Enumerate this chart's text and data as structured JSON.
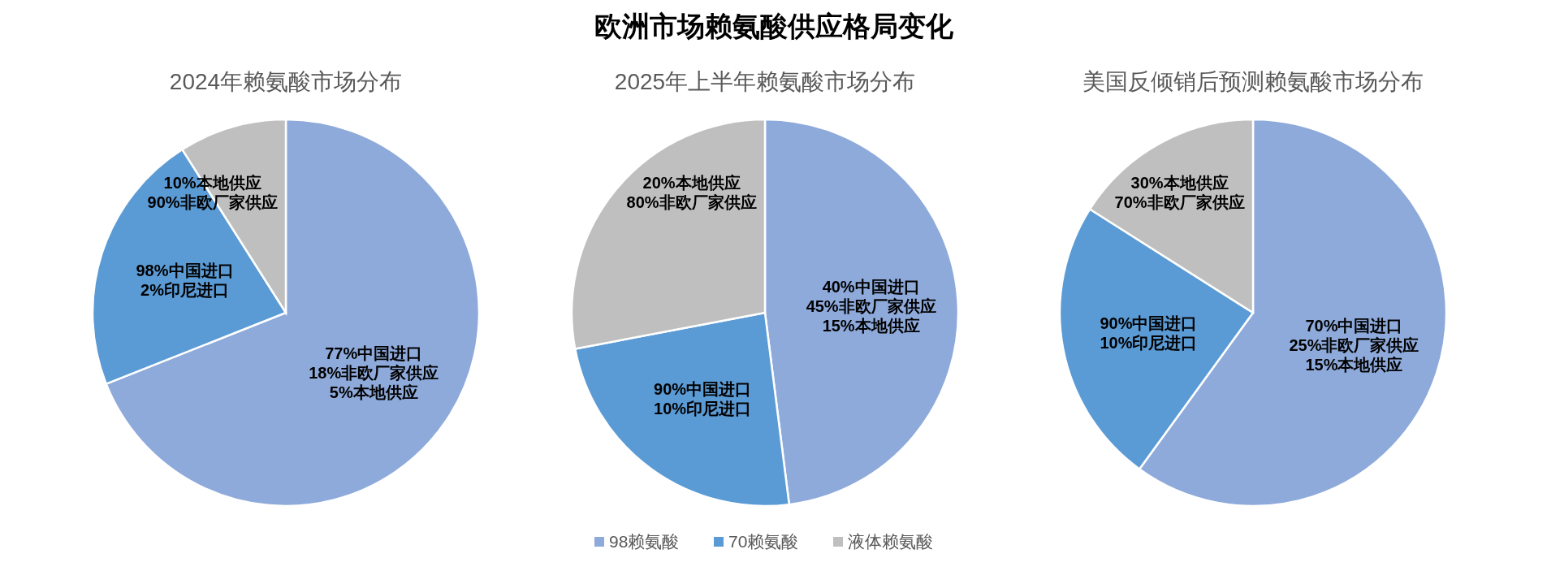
{
  "chart_data": [
    {
      "type": "other",
      "title": "欧洲市场赖氨酸供应格局变化"
    },
    {
      "type": "pie",
      "title": "2024年赖氨酸市场分布",
      "categories": [
        null,
        null,
        null
      ],
      "values": [
        69,
        22,
        9
      ],
      "colors": [
        "#8eaadb",
        "#5b9bd5",
        "#bfbfbf"
      ],
      "legend": false,
      "annotations": [
        "77%中国进口\n18%非欧厂家供应\n5%本地供应",
        "98%中国进口\n2%印尼进口",
        "10%本地供应\n90%非欧厂家供应"
      ]
    },
    {
      "type": "pie",
      "title": "2025年上半年赖氨酸市场分布",
      "categories": [
        "98赖氨酸",
        "70赖氨酸",
        "液体赖氨酸"
      ],
      "values": [
        48,
        24,
        28
      ],
      "colors": [
        "#8eaadb",
        "#5b9bd5",
        "#bfbfbf"
      ],
      "legend": "bottom",
      "annotations": [
        "40%中国进口\n45%非欧厂家供应\n15%本地供应",
        "90%中国进口\n10%印尼进口",
        "20%本地供应\n80%非欧厂家供应"
      ]
    },
    {
      "type": "pie",
      "title": "美国反倾销后预测赖氨酸市场分布",
      "categories": [
        null,
        null,
        null
      ],
      "values": [
        60,
        24,
        16
      ],
      "colors": [
        "#8eaadb",
        "#5b9bd5",
        "#bfbfbf"
      ],
      "legend": false,
      "annotations": [
        "70%中国进口\n25%非欧厂家供应\n15%本地供应",
        "90%中国进口\n10%印尼进口",
        "30%本地供应\n70%非欧厂家供应"
      ]
    }
  ]
}
